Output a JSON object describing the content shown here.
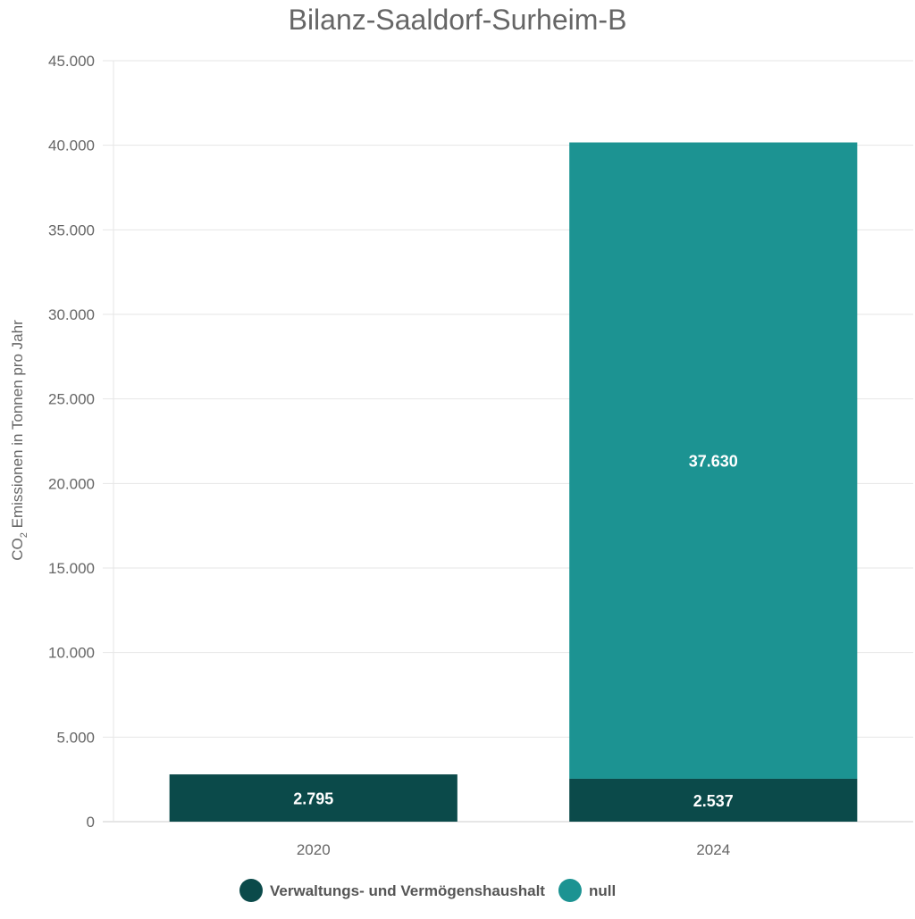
{
  "chart_data": {
    "type": "bar",
    "stacked": true,
    "title": "Bilanz-Saaldorf-Surheim-B",
    "xlabel": "",
    "ylabel": {
      "prefix": "CO",
      "subscript": "2",
      "suffix": " Emissionen in Tonnen pro Jahr"
    },
    "categories": [
      "2020",
      "2024"
    ],
    "series": [
      {
        "name": "Verwaltungs- und Vermögenshaushalt",
        "color": "#0b4a4a",
        "values": [
          2795,
          2537
        ],
        "labels": [
          "2.795",
          "2.537"
        ]
      },
      {
        "name": "null",
        "color": "#1c9392",
        "values": [
          0,
          37630
        ],
        "labels": [
          "",
          "37.630"
        ]
      }
    ],
    "ylim": [
      0,
      45000
    ],
    "yticks": [
      0,
      5000,
      10000,
      15000,
      20000,
      25000,
      30000,
      35000,
      40000,
      45000
    ],
    "ytick_labels": [
      "0",
      "5.000",
      "10.000",
      "15.000",
      "20.000",
      "25.000",
      "30.000",
      "35.000",
      "40.000",
      "45.000"
    ],
    "grid": true,
    "legend_position": "bottom-center"
  }
}
